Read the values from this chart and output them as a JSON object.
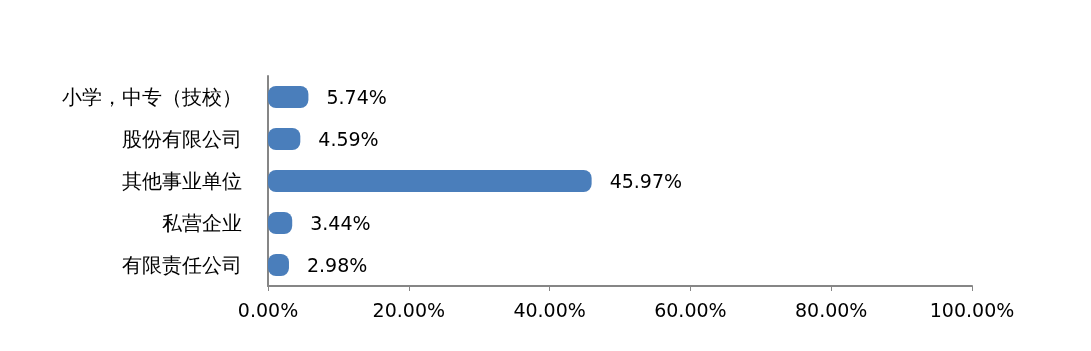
{
  "chart_data": {
    "type": "bar",
    "orientation": "horizontal",
    "categories": [
      "小学，中专（技校）",
      "股份有限公司",
      "其他事业单位",
      "私营企业",
      "有限责任公司"
    ],
    "values": [
      5.74,
      4.59,
      45.97,
      3.44,
      2.98
    ],
    "value_labels": [
      "5.74%",
      "4.59%",
      "45.97%",
      "3.44%",
      "2.98%"
    ],
    "color": "#4a7ebb",
    "xlim": [
      0,
      100
    ],
    "xticks": [
      {
        "value": 0,
        "label": "0.00%"
      },
      {
        "value": 20,
        "label": "20.00%"
      },
      {
        "value": 40,
        "label": "40.00%"
      },
      {
        "value": 60,
        "label": "60.00%"
      },
      {
        "value": 80,
        "label": "80.00%"
      },
      {
        "value": 100,
        "label": "100.00%"
      }
    ],
    "grid": false
  }
}
